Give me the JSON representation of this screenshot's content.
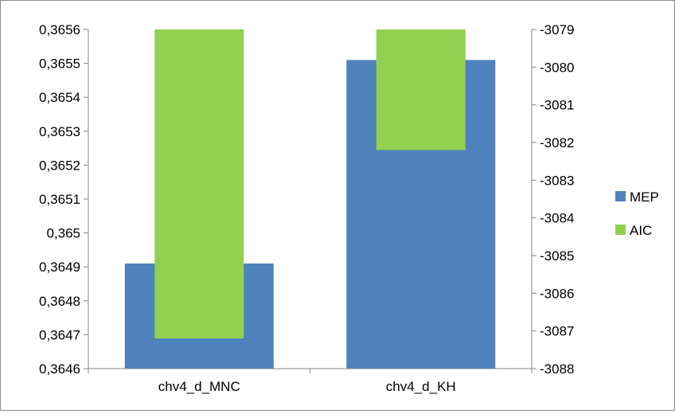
{
  "chart_data": {
    "type": "bar",
    "categories": [
      "chv4_d_MNC",
      "chv4_d_KH"
    ],
    "series": [
      {
        "name": "MEP",
        "axis": "left",
        "color": "#4f81bd",
        "values": [
          0.36491,
          0.36551
        ]
      },
      {
        "name": "AIC",
        "axis": "right",
        "color": "#92d050",
        "values": [
          -3087.2,
          -3082.2
        ]
      }
    ],
    "y_left": {
      "min": 0.3646,
      "max": 0.3656,
      "tick_labels": [
        "0,3646",
        "0,3647",
        "0,3648",
        "0,3649",
        "0,365",
        "0,3651",
        "0,3652",
        "0,3653",
        "0,3654",
        "0,3655",
        "0,3656"
      ]
    },
    "y_right": {
      "min": -3088,
      "max": -3079,
      "tick_labels": [
        "-3088",
        "-3087",
        "-3086",
        "-3085",
        "-3084",
        "-3083",
        "-3082",
        "-3081",
        "-3080",
        "-3079"
      ]
    },
    "title": "",
    "xlabel": "",
    "ylabel": "",
    "grid": false,
    "legend_position": "right"
  }
}
